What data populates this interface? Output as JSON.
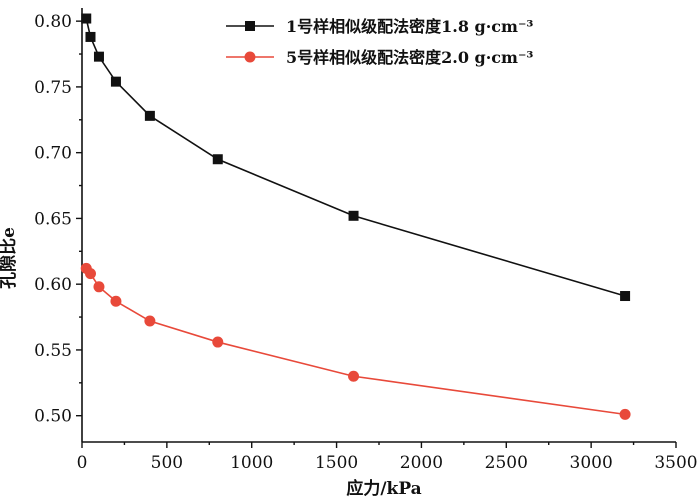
{
  "chart_data": {
    "type": "line",
    "title": "",
    "xlabel": "应力/kPa",
    "ylabel": "孔隙比e",
    "xlim": [
      0,
      3500
    ],
    "ylim": [
      0.48,
      0.81
    ],
    "x_ticks": [
      0,
      500,
      1000,
      1500,
      2000,
      2500,
      3000,
      3500
    ],
    "x_tick_labels": [
      "0",
      "500",
      "1000",
      "1500",
      "2000",
      "2500",
      "3000",
      "3500"
    ],
    "y_ticks": [
      0.5,
      0.55,
      0.6,
      0.65,
      0.7,
      0.75,
      0.8
    ],
    "y_tick_labels": [
      "0.50",
      "0.55",
      "0.60",
      "0.65",
      "0.70",
      "0.75",
      "0.80"
    ],
    "grid": false,
    "legend_position": "top-right",
    "series": [
      {
        "name": "1号样相似级配法密度1.8 g·cm⁻³",
        "color": "#111111",
        "marker": "square",
        "x": [
          25,
          50,
          100,
          200,
          400,
          800,
          1600,
          3200
        ],
        "y": [
          0.802,
          0.788,
          0.773,
          0.754,
          0.728,
          0.695,
          0.652,
          0.591
        ]
      },
      {
        "name": "5号样相似级配法密度2.0 g·cm⁻³",
        "color": "#e8493a",
        "marker": "circle",
        "x": [
          25,
          50,
          100,
          200,
          400,
          800,
          1600,
          3200
        ],
        "y": [
          0.612,
          0.608,
          0.598,
          0.587,
          0.572,
          0.556,
          0.53,
          0.501
        ]
      }
    ]
  }
}
